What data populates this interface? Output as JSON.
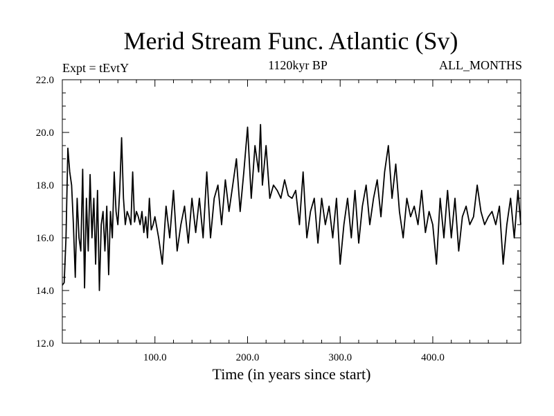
{
  "chart_data": {
    "type": "line",
    "title": "Merid Stream Func. Atlantic (Sv)",
    "subtitle_left": "Expt = tEvtY",
    "subtitle_center": "1120kyr BP",
    "subtitle_right": "ALL_MONTHS",
    "xlabel": "Time (in years since start)",
    "ylabel": "",
    "xlim": [
      0,
      495
    ],
    "ylim": [
      12.0,
      22.0
    ],
    "xticks": [
      100,
      200,
      300,
      400
    ],
    "xtick_labels": [
      "100.0",
      "200.0",
      "300.0",
      "400.0"
    ],
    "yticks": [
      12,
      14,
      16,
      18,
      20,
      22
    ],
    "ytick_labels": [
      "12.0",
      "14.0",
      "16.0",
      "18.0",
      "20.0",
      "22.0"
    ],
    "series": [
      {
        "name": "Merid Stream Func. Atlantic",
        "x": [
          0,
          2,
          4,
          6,
          8,
          10,
          12,
          14,
          16,
          18,
          20,
          22,
          24,
          26,
          28,
          30,
          32,
          34,
          36,
          38,
          40,
          42,
          44,
          46,
          48,
          50,
          52,
          54,
          56,
          58,
          60,
          62,
          64,
          66,
          68,
          70,
          72,
          74,
          76,
          78,
          80,
          82,
          84,
          86,
          88,
          90,
          92,
          94,
          96,
          98,
          100,
          104,
          108,
          112,
          116,
          120,
          124,
          128,
          132,
          136,
          140,
          144,
          148,
          152,
          156,
          160,
          164,
          168,
          172,
          176,
          180,
          184,
          188,
          192,
          196,
          200,
          204,
          208,
          212,
          214,
          216,
          220,
          224,
          228,
          232,
          236,
          240,
          244,
          248,
          252,
          256,
          260,
          264,
          268,
          272,
          276,
          280,
          284,
          288,
          292,
          296,
          300,
          304,
          308,
          312,
          316,
          320,
          324,
          328,
          332,
          336,
          340,
          344,
          348,
          352,
          356,
          360,
          364,
          368,
          372,
          376,
          380,
          384,
          388,
          392,
          396,
          400,
          404,
          408,
          412,
          416,
          420,
          424,
          428,
          432,
          436,
          440,
          444,
          448,
          452,
          456,
          460,
          464,
          468,
          472,
          476,
          480,
          484,
          488,
          492,
          495
        ],
        "values": [
          14.2,
          14.3,
          16.0,
          19.4,
          18.5,
          18.0,
          16.5,
          14.5,
          17.5,
          16.0,
          15.5,
          18.6,
          14.1,
          17.5,
          15.5,
          18.4,
          16.0,
          17.5,
          15.0,
          17.8,
          14.0,
          16.5,
          17.0,
          15.5,
          17.2,
          14.6,
          17.0,
          16.0,
          18.5,
          17.0,
          16.5,
          17.8,
          19.8,
          17.5,
          16.5,
          17.0,
          16.8,
          16.5,
          18.5,
          16.6,
          17.0,
          16.8,
          16.5,
          17.0,
          16.2,
          16.8,
          16.0,
          17.5,
          16.3,
          16.5,
          16.8,
          16.0,
          15.0,
          17.2,
          16.0,
          17.8,
          15.5,
          16.5,
          17.2,
          15.8,
          17.5,
          16.2,
          17.5,
          16.0,
          18.5,
          16.0,
          17.5,
          18.0,
          16.5,
          18.2,
          17.0,
          18.0,
          19.0,
          17.0,
          18.5,
          20.2,
          17.5,
          19.5,
          18.5,
          20.3,
          18.0,
          19.5,
          17.5,
          18.0,
          17.8,
          17.5,
          18.2,
          17.6,
          17.5,
          17.8,
          16.5,
          18.5,
          16.0,
          17.0,
          17.5,
          15.8,
          17.5,
          16.5,
          17.2,
          16.0,
          17.5,
          15.0,
          16.5,
          17.5,
          16.0,
          17.8,
          15.8,
          17.2,
          18.0,
          16.5,
          17.5,
          18.2,
          16.8,
          18.5,
          19.5,
          17.5,
          18.8,
          17.0,
          16.0,
          17.5,
          16.8,
          17.2,
          16.5,
          17.8,
          16.2,
          17.0,
          16.5,
          15.0,
          17.5,
          16.0,
          17.8,
          16.0,
          17.5,
          15.5,
          16.8,
          17.2,
          16.5,
          16.8,
          18.0,
          17.0,
          16.5,
          16.8,
          17.0,
          16.5,
          17.2,
          15.0,
          16.5,
          17.5,
          16.0,
          17.8,
          16.5
        ]
      }
    ]
  }
}
